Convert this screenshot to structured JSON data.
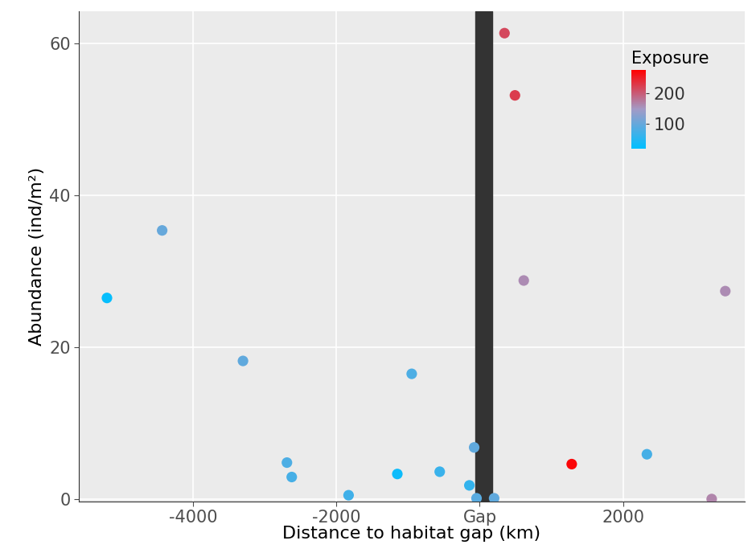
{
  "chart_data": {
    "type": "scatter",
    "xlabel": "Distance to habitat gap (km)",
    "ylabel": "Abundance (ind/m²)",
    "x": [
      -5207,
      -4436,
      -3307,
      -2693,
      -2626,
      -1832,
      -1151,
      -950,
      -559,
      -145,
      -78,
      -45,
      201,
      346,
      492,
      615,
      1285,
      2335,
      3240,
      3430
    ],
    "values": [
      26.5,
      35.4,
      18.2,
      4.8,
      2.9,
      0.5,
      3.3,
      16.5,
      3.6,
      1.8,
      6.8,
      0.1,
      0.1,
      61.4,
      53.2,
      28.8,
      4.6,
      5.9,
      0.0,
      27.4
    ],
    "exposure": [
      25,
      100,
      95,
      80,
      75,
      70,
      30,
      80,
      65,
      60,
      95,
      90,
      95,
      215,
      225,
      160,
      270,
      75,
      165,
      160
    ],
    "exposure_title": "Exposure",
    "exposure_range": [
      20,
      275
    ],
    "exposure_ticks": [
      100,
      200
    ],
    "exposure_colors": [
      "#00BFFF",
      "#A39AC6",
      "#FF0000"
    ],
    "gap_region": [
      -60,
      180
    ],
    "gap_color": "#333333",
    "xlim": [
      -5598,
      3698
    ],
    "ylim": [
      -0.3,
      64.3
    ],
    "xticks": [
      -4000,
      -2000,
      {
        "value": 0,
        "label": "Gap"
      },
      2000
    ],
    "yticks": [
      0,
      20,
      40,
      60
    ],
    "grid": true
  }
}
